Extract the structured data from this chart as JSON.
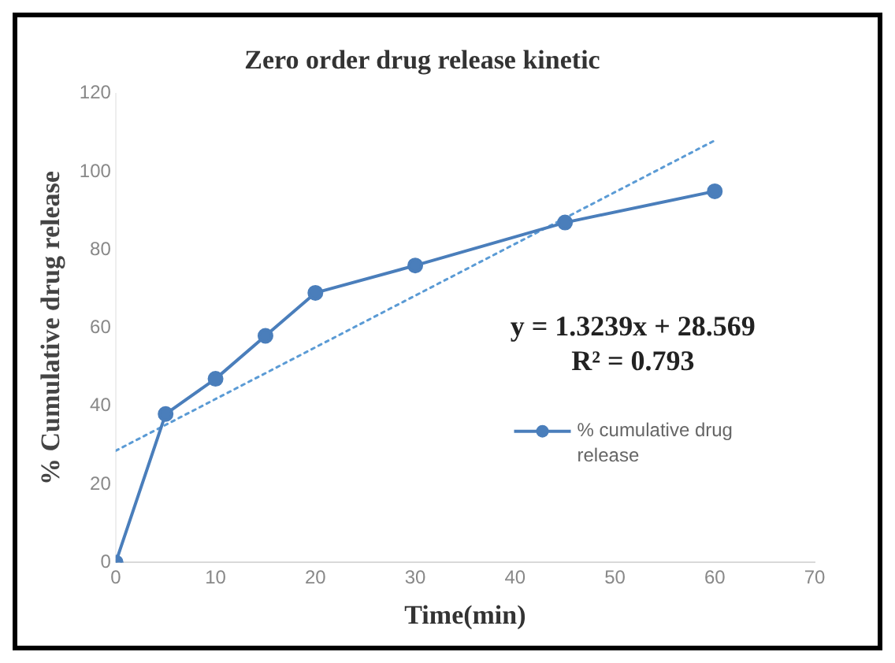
{
  "chart_data": {
    "type": "line",
    "title": "Zero order drug release kinetic",
    "xlabel": "Time(min)",
    "ylabel": "% Cumulative drug release",
    "x": [
      0,
      5,
      10,
      15,
      20,
      30,
      45,
      60
    ],
    "series": [
      {
        "name": "% cumulative drug release",
        "color": "#4a7ebb",
        "values": [
          0,
          38,
          47,
          58,
          69,
          76,
          87,
          95
        ],
        "marker": "circle",
        "line_style": "solid"
      },
      {
        "type": "line",
        "color": "#5b9bd5",
        "x": [
          0,
          60
        ],
        "values": [
          28.6,
          108.0
        ],
        "marker": "none",
        "line_style": "dotted"
      }
    ],
    "xlim": [
      0,
      70
    ],
    "xticks": [
      0,
      10,
      20,
      30,
      40,
      50,
      60,
      70
    ],
    "ylim": [
      0,
      120
    ],
    "yticks": [
      0,
      20,
      40,
      60,
      80,
      100,
      120
    ],
    "grid": false,
    "legend": "right",
    "annotations": [
      "y = 1.3239x + 28.569",
      "R² = 0.793"
    ]
  }
}
